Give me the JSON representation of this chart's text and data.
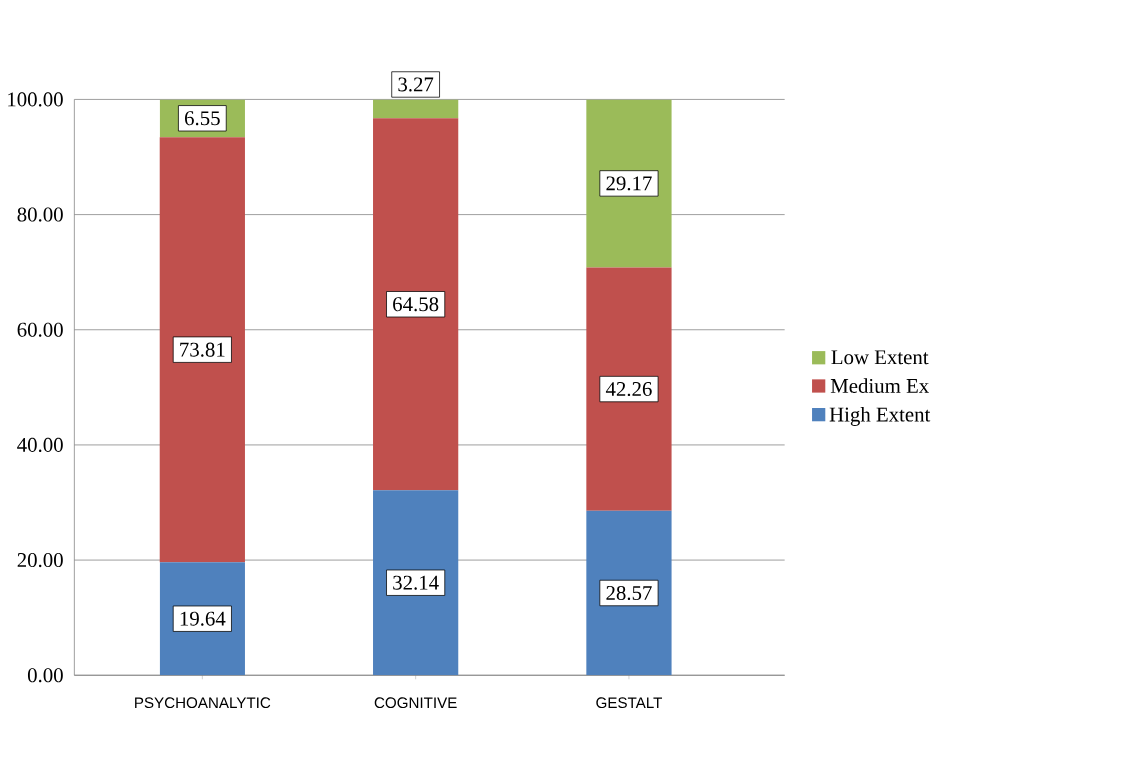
{
  "chart_data": {
    "type": "bar",
    "stacked": true,
    "categories": [
      "PSYCHOANALYTIC",
      "COGNITIVE",
      "GESTALT"
    ],
    "series": [
      {
        "name": "High Extent",
        "color": "#4f81bd",
        "values": [
          19.64,
          32.14,
          28.57
        ]
      },
      {
        "name": "Medium Ex",
        "color": "#c0504d",
        "values": [
          73.81,
          64.58,
          42.26
        ]
      },
      {
        "name": "Low Extent",
        "color": "#9bbb59",
        "values": [
          6.55,
          3.27,
          29.17
        ]
      }
    ],
    "ylim": [
      0,
      100
    ],
    "yticks": [
      {
        "value": 0,
        "label": "0.00"
      },
      {
        "value": 20,
        "label": "20.00"
      },
      {
        "value": 40,
        "label": "40.00"
      },
      {
        "value": 60,
        "label": "60.00"
      },
      {
        "value": 80,
        "label": "80.00"
      },
      {
        "value": 100,
        "label": "100.00"
      }
    ],
    "grid": "y",
    "legend": "right",
    "data_labels": true
  }
}
